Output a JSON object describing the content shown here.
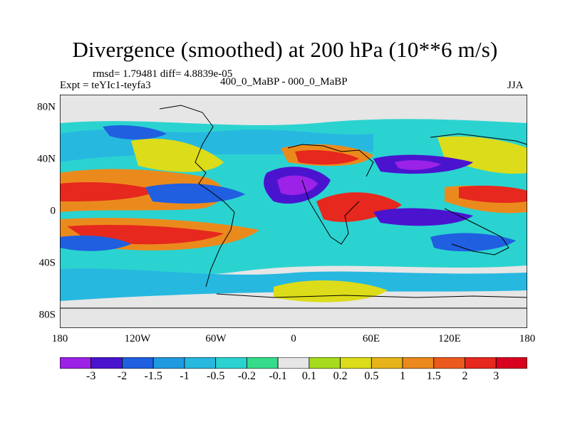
{
  "title": "Divergence (smoothed) at 200 hPa (10**6 m/s)",
  "stats": "rmsd= 1.79481 diff= 4.8839e-05",
  "expt": "Expt = teYIc1-teyfa3",
  "comparison": "400_0_MaBP - 000_0_MaBP",
  "season": "JJA",
  "x_ticks": [
    "180",
    "120W",
    "60W",
    "0",
    "60E",
    "120E",
    "180"
  ],
  "y_ticks": [
    "80N",
    "40N",
    "0",
    "40S",
    "80S"
  ],
  "colorbar": {
    "labels": [
      "-3",
      "-2",
      "-1.5",
      "-1",
      "-0.5",
      "-0.2",
      "-0.1",
      "0.1",
      "0.2",
      "0.5",
      "1",
      "1.5",
      "2",
      "3"
    ],
    "colors": [
      "#9b22e6",
      "#4a14cf",
      "#1f5fe0",
      "#1f9ae0",
      "#27b8e0",
      "#2bd3d0",
      "#35dc8a",
      "#e6e6e6",
      "#a6dc1c",
      "#dcdc1a",
      "#e6b41a",
      "#eb8a1c",
      "#eb5a1c",
      "#e6281e",
      "#d8001e"
    ]
  },
  "map_fields": {
    "background": "#e6e6e6",
    "coast_color": "#000000"
  }
}
